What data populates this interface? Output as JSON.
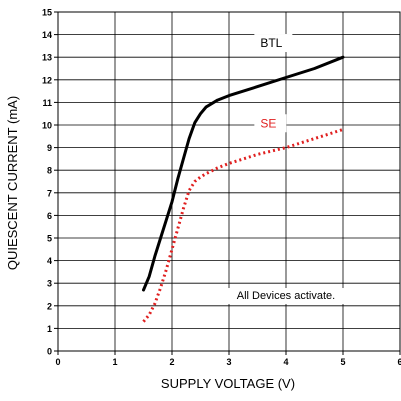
{
  "chart_data": {
    "type": "line",
    "title": "",
    "xlabel": "SUPPLY VOLTAGE (V)",
    "ylabel": "QUIESCENT CURRENT (mA)",
    "xlim": [
      0,
      6
    ],
    "ylim": [
      0,
      15
    ],
    "xticks": [
      "0",
      "1",
      "2",
      "3",
      "4",
      "5",
      "6"
    ],
    "yticks": [
      "0",
      "1",
      "2",
      "3",
      "4",
      "5",
      "6",
      "7",
      "8",
      "9",
      "10",
      "11",
      "12",
      "13",
      "14",
      "15"
    ],
    "grid": true,
    "series": [
      {
        "name": "BTL",
        "color": "#000000",
        "style": "solid",
        "x": [
          1.5,
          1.6,
          1.7,
          1.8,
          1.9,
          2.0,
          2.1,
          2.2,
          2.3,
          2.4,
          2.5,
          2.6,
          2.8,
          3.0,
          3.5,
          4.0,
          4.5,
          5.0
        ],
        "y": [
          2.7,
          3.3,
          4.2,
          5.0,
          5.8,
          6.6,
          7.6,
          8.5,
          9.4,
          10.1,
          10.5,
          10.8,
          11.1,
          11.3,
          11.7,
          12.1,
          12.5,
          13.0
        ]
      },
      {
        "name": "SE",
        "color": "#e02020",
        "style": "dotted",
        "x": [
          1.5,
          1.6,
          1.7,
          1.8,
          1.9,
          2.0,
          2.1,
          2.2,
          2.3,
          2.4,
          2.5,
          2.6,
          2.8,
          3.0,
          3.5,
          4.0,
          4.5,
          5.0
        ],
        "y": [
          1.3,
          1.6,
          2.1,
          2.8,
          3.6,
          4.5,
          5.4,
          6.3,
          7.1,
          7.5,
          7.7,
          7.85,
          8.1,
          8.3,
          8.7,
          9.0,
          9.4,
          9.8
        ]
      }
    ],
    "annotations": [
      {
        "text": "All Devices activate.",
        "x": 4.0,
        "y": 2.3
      }
    ]
  }
}
